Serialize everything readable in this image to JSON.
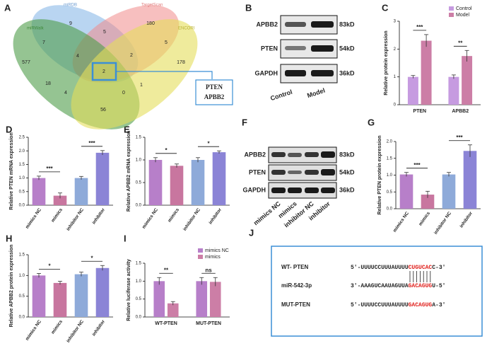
{
  "panel_letters": [
    "A",
    "B",
    "C",
    "D",
    "E",
    "F",
    "G",
    "H",
    "I",
    "J"
  ],
  "venn": {
    "sets": [
      "miRDB",
      "TargetScan",
      "miRWalk",
      "ENCORI"
    ],
    "counts": [
      "9",
      "180",
      "7",
      "5",
      "5",
      "4",
      "2",
      "577",
      "178",
      "2",
      "18",
      "1",
      "4",
      "0",
      "56"
    ],
    "callout": [
      "PTEN",
      "APBB2"
    ]
  },
  "blot_b": {
    "proteins": [
      "APBB2",
      "PTEN",
      "GAPDH"
    ],
    "sizes": [
      "83kD",
      "54kD",
      "36kD"
    ],
    "lanes": [
      "Control",
      "Model"
    ]
  },
  "blot_f": {
    "proteins": [
      "APBB2",
      "PTEN",
      "GAPDH"
    ],
    "sizes": [
      "83kD",
      "54kD",
      "36kD"
    ],
    "lanes": [
      "mimics NC",
      "mimics",
      "inhibitor NC",
      "inhibitor"
    ]
  },
  "sequences": [
    {
      "label": "WT- PTEN",
      "prefix": "5'-UUUUCCUUUAUUUU",
      "site": "CUGUCAC",
      "suffix": "C-3'"
    },
    {
      "label": "miR-542-3p",
      "prefix": "3'-AAAGUCAAUAGUUA",
      "site": "GACAGUG",
      "suffix": "U-5'"
    },
    {
      "label": "MUT-PTEN",
      "prefix": "5'-UUUUCCUUUAUUUU",
      "site": "GACAGUG",
      "suffix": "A-3'"
    }
  ],
  "chart_data": [
    {
      "type": "bar",
      "ylabel": "Relative protein expression",
      "categories": [
        "PTEN",
        "APBB2"
      ],
      "series": [
        {
          "name": "Control",
          "color": "#c69be0",
          "values": [
            1,
            1
          ],
          "errors": [
            0.05,
            0.07
          ]
        },
        {
          "name": "Model",
          "color": "#cc7ea6",
          "values": [
            2.3,
            1.75
          ],
          "errors": [
            0.22,
            0.2
          ]
        }
      ],
      "ylim": [
        0,
        3
      ],
      "yticks": [
        0,
        1,
        2,
        3
      ],
      "significance": [
        "***",
        "**"
      ],
      "legend": "top-right"
    },
    {
      "type": "bar",
      "ylabel": "Relative PTEN mRNA expression",
      "categories": [
        "mimics NC",
        "mimics",
        "inhibitor NC",
        "inhibitor"
      ],
      "values": [
        1,
        0.35,
        1,
        1.93
      ],
      "errors": [
        0.07,
        0.1,
        0.06,
        0.08
      ],
      "colors": [
        "#b77fc9",
        "#c8769f",
        "#8eaad9",
        "#8b84d6"
      ],
      "ylim": [
        0,
        2.5
      ],
      "yticks": [
        {
          "value": 0,
          "label": "0.0"
        },
        0.5,
        {
          "value": 1,
          "label": "1.0"
        },
        1.5,
        {
          "value": 2,
          "label": "2.0"
        },
        2.5
      ],
      "significance": [
        "***",
        "***"
      ]
    },
    {
      "type": "bar",
      "ylabel": "Relative APBB2 mRNA expression",
      "categories": [
        "mimics NC",
        "mimics",
        "inhibitor NC",
        "inhibitor"
      ],
      "values": [
        1,
        0.87,
        1,
        1.17
      ],
      "errors": [
        0.05,
        0.04,
        0.05,
        0.03
      ],
      "colors": [
        "#b77fc9",
        "#c8769f",
        "#8eaad9",
        "#8b84d6"
      ],
      "ylim": [
        0,
        1.5
      ],
      "yticks": [
        {
          "value": 0,
          "label": "0.0"
        },
        0.5,
        {
          "value": 1,
          "label": "1.0"
        },
        1.5
      ],
      "significance": [
        "*",
        "*"
      ]
    },
    {
      "type": "bar",
      "ylabel": "Relative PTEN protein expression",
      "categories": [
        "mimics NC",
        "mimics",
        "inhibitor NC",
        "inhibitor"
      ],
      "values": [
        1.02,
        0.42,
        1.02,
        1.72
      ],
      "errors": [
        0.06,
        0.1,
        0.06,
        0.18
      ],
      "colors": [
        "#b77fc9",
        "#c8769f",
        "#8eaad9",
        "#8b84d6"
      ],
      "ylim": [
        0,
        2
      ],
      "yticks": [
        {
          "value": 0,
          "label": "0.0"
        },
        0.5,
        {
          "value": 1,
          "label": "1.0"
        },
        1.5,
        {
          "value": 2,
          "label": "2.0"
        }
      ],
      "significance": [
        "***",
        "***"
      ]
    },
    {
      "type": "bar",
      "ylabel": "Relative APBB2 protein expression",
      "categories": [
        "mimics NC",
        "mimics",
        "inhibitor NC",
        "inhibitor"
      ],
      "values": [
        1,
        0.82,
        1.03,
        1.18
      ],
      "errors": [
        0.05,
        0.04,
        0.05,
        0.06
      ],
      "colors": [
        "#b77fc9",
        "#c8769f",
        "#8eaad9",
        "#8b84d6"
      ],
      "ylim": [
        0,
        1.5
      ],
      "yticks": [
        {
          "value": 0,
          "label": "0.0"
        },
        0.5,
        {
          "value": 1,
          "label": "1.0"
        },
        1.5
      ],
      "significance": [
        "*",
        "*"
      ]
    },
    {
      "type": "bar",
      "ylabel": "Relative luciferase activity",
      "categories": [
        "WT-PTEN",
        "MUT-PTEN"
      ],
      "series": [
        {
          "name": "mimics NC",
          "color": "#b77fc9",
          "values": [
            1,
            1
          ],
          "errors": [
            0.1,
            0.1
          ]
        },
        {
          "name": "mimics",
          "color": "#cc7ea6",
          "values": [
            0.38,
            0.98
          ],
          "errors": [
            0.05,
            0.12
          ]
        }
      ],
      "ylim": [
        0,
        1.5
      ],
      "yticks": [
        {
          "value": 0,
          "label": "0.0"
        },
        0.5,
        {
          "value": 1,
          "label": "1.0"
        },
        1.5
      ],
      "significance": [
        "**",
        "ns"
      ],
      "legend": "top-right"
    }
  ]
}
